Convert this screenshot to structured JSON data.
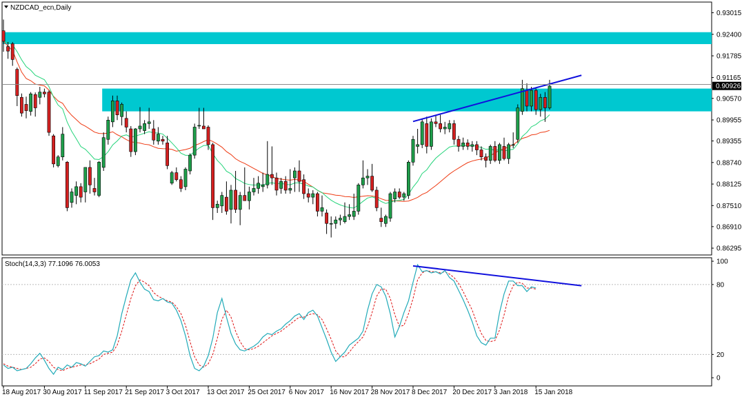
{
  "header": {
    "symbol_title": "NZDCAD_ecn,Daily",
    "indicator_title": "Stoch(14,3,3) 77.1096 76.0053"
  },
  "colors": {
    "bull": "#1e9e4a",
    "bear": "#d42020",
    "zone": "#00c8d0",
    "ma_fast": "#24d47a",
    "ma_slow": "#ee3a12",
    "trendline": "#1010dd",
    "stoch_main": "#20aab8",
    "stoch_signal": "#dd1111",
    "current_price_bg": "#000000"
  },
  "chart_data": {
    "type": "candlestick",
    "y_axis": {
      "range": [
        0.861,
        0.9332
      ],
      "ticks": [
        "0.93015",
        "0.92400",
        "0.91785",
        "0.91165",
        "0.90570",
        "0.89955",
        "0.89355",
        "0.88740",
        "0.88125",
        "0.87510",
        "0.86910",
        "0.86295"
      ],
      "current_price": "0.90926",
      "current_price_value": 0.90926
    },
    "x_axis": {
      "labels": [
        "18 Aug 2017",
        "30 Aug 2017",
        "11 Sep 2017",
        "21 Sep 2017",
        "3 Oct 2017",
        "13 Oct 2017",
        "25 Oct 2017",
        "6 Nov 2017",
        "16 Nov 2017",
        "28 Nov 2017",
        "8 Dec 2017",
        "20 Dec 2017",
        "3 Jan 2018",
        "15 Jan 2018"
      ],
      "label_bar_index": [
        0,
        9,
        18,
        27,
        36,
        45,
        54,
        63,
        72,
        81,
        90,
        99,
        108,
        117
      ]
    },
    "resistance_zones": [
      {
        "low": 0.9212,
        "high": 0.9246,
        "from_bar": 0,
        "to_bar": "right_edge"
      },
      {
        "low": 0.902,
        "high": 0.9085,
        "from_bar": 22,
        "to_bar": "right_edge"
      }
    ],
    "horizontal_line": 0.9097,
    "price_trendline": [
      {
        "bar": 90,
        "price": 0.8991
      },
      {
        "bar": 127,
        "price": 0.9123
      }
    ],
    "candles": [
      {
        "o": 0.925,
        "h": 0.9282,
        "l": 0.919,
        "c": 0.922
      },
      {
        "o": 0.9205,
        "h": 0.9218,
        "l": 0.917,
        "c": 0.9192
      },
      {
        "o": 0.9213,
        "h": 0.9218,
        "l": 0.915,
        "c": 0.9168
      },
      {
        "o": 0.914,
        "h": 0.9145,
        "l": 0.9035,
        "c": 0.9065
      },
      {
        "o": 0.906,
        "h": 0.9071,
        "l": 0.9005,
        "c": 0.9015
      },
      {
        "o": 0.904,
        "h": 0.9062,
        "l": 0.9,
        "c": 0.9022
      },
      {
        "o": 0.902,
        "h": 0.9075,
        "l": 0.9008,
        "c": 0.907
      },
      {
        "o": 0.9068,
        "h": 0.9074,
        "l": 0.9005,
        "c": 0.903
      },
      {
        "o": 0.906,
        "h": 0.909,
        "l": 0.904,
        "c": 0.9075
      },
      {
        "o": 0.9075,
        "h": 0.9085,
        "l": 0.906,
        "c": 0.907
      },
      {
        "o": 0.9075,
        "h": 0.908,
        "l": 0.895,
        "c": 0.896
      },
      {
        "o": 0.895,
        "h": 0.8955,
        "l": 0.886,
        "c": 0.887
      },
      {
        "o": 0.8865,
        "h": 0.8895,
        "l": 0.886,
        "c": 0.889
      },
      {
        "o": 0.889,
        "h": 0.8975,
        "l": 0.888,
        "c": 0.8955
      },
      {
        "o": 0.8875,
        "h": 0.8878,
        "l": 0.8735,
        "c": 0.8745
      },
      {
        "o": 0.876,
        "h": 0.88,
        "l": 0.8745,
        "c": 0.879
      },
      {
        "o": 0.878,
        "h": 0.882,
        "l": 0.8755,
        "c": 0.8805
      },
      {
        "o": 0.8805,
        "h": 0.8815,
        "l": 0.876,
        "c": 0.8775
      },
      {
        "o": 0.879,
        "h": 0.886,
        "l": 0.876,
        "c": 0.886
      },
      {
        "o": 0.886,
        "h": 0.888,
        "l": 0.8785,
        "c": 0.881
      },
      {
        "o": 0.88,
        "h": 0.883,
        "l": 0.878,
        "c": 0.879
      },
      {
        "o": 0.878,
        "h": 0.8878,
        "l": 0.8775,
        "c": 0.8875
      },
      {
        "o": 0.886,
        "h": 0.896,
        "l": 0.885,
        "c": 0.8945
      },
      {
        "o": 0.894,
        "h": 0.9005,
        "l": 0.8925,
        "c": 0.8995
      },
      {
        "o": 0.899,
        "h": 0.9065,
        "l": 0.8975,
        "c": 0.905
      },
      {
        "o": 0.905,
        "h": 0.9065,
        "l": 0.8995,
        "c": 0.901
      },
      {
        "o": 0.9005,
        "h": 0.9045,
        "l": 0.898,
        "c": 0.904
      },
      {
        "o": 0.9,
        "h": 0.902,
        "l": 0.896,
        "c": 0.8975
      },
      {
        "o": 0.897,
        "h": 0.8978,
        "l": 0.889,
        "c": 0.8905
      },
      {
        "o": 0.8905,
        "h": 0.8972,
        "l": 0.8895,
        "c": 0.897
      },
      {
        "o": 0.897,
        "h": 0.9032,
        "l": 0.896,
        "c": 0.8978
      },
      {
        "o": 0.8965,
        "h": 0.8995,
        "l": 0.8955,
        "c": 0.8985
      },
      {
        "o": 0.8985,
        "h": 0.903,
        "l": 0.897,
        "c": 0.899
      },
      {
        "o": 0.897,
        "h": 0.8995,
        "l": 0.8925,
        "c": 0.8938
      },
      {
        "o": 0.8935,
        "h": 0.8975,
        "l": 0.8925,
        "c": 0.8955
      },
      {
        "o": 0.894,
        "h": 0.895,
        "l": 0.8925,
        "c": 0.8935
      },
      {
        "o": 0.893,
        "h": 0.895,
        "l": 0.8855,
        "c": 0.8865
      },
      {
        "o": 0.8815,
        "h": 0.885,
        "l": 0.881,
        "c": 0.8845
      },
      {
        "o": 0.8845,
        "h": 0.886,
        "l": 0.882,
        "c": 0.8825
      },
      {
        "o": 0.8825,
        "h": 0.8835,
        "l": 0.879,
        "c": 0.88
      },
      {
        "o": 0.8805,
        "h": 0.886,
        "l": 0.8795,
        "c": 0.8855
      },
      {
        "o": 0.885,
        "h": 0.89,
        "l": 0.884,
        "c": 0.8895
      },
      {
        "o": 0.8895,
        "h": 0.8985,
        "l": 0.8885,
        "c": 0.8975
      },
      {
        "o": 0.8978,
        "h": 0.903,
        "l": 0.897,
        "c": 0.898
      },
      {
        "o": 0.8978,
        "h": 0.903,
        "l": 0.897,
        "c": 0.897
      },
      {
        "o": 0.8975,
        "h": 0.898,
        "l": 0.891,
        "c": 0.8925
      },
      {
        "o": 0.8925,
        "h": 0.893,
        "l": 0.871,
        "c": 0.8745
      },
      {
        "o": 0.8745,
        "h": 0.8765,
        "l": 0.873,
        "c": 0.8755
      },
      {
        "o": 0.875,
        "h": 0.879,
        "l": 0.873,
        "c": 0.878
      },
      {
        "o": 0.8775,
        "h": 0.882,
        "l": 0.8725,
        "c": 0.8735
      },
      {
        "o": 0.874,
        "h": 0.881,
        "l": 0.87,
        "c": 0.8795
      },
      {
        "o": 0.8795,
        "h": 0.885,
        "l": 0.873,
        "c": 0.874
      },
      {
        "o": 0.874,
        "h": 0.879,
        "l": 0.8695,
        "c": 0.878
      },
      {
        "o": 0.878,
        "h": 0.886,
        "l": 0.877,
        "c": 0.8765
      },
      {
        "o": 0.8765,
        "h": 0.8805,
        "l": 0.874,
        "c": 0.879
      },
      {
        "o": 0.879,
        "h": 0.883,
        "l": 0.878,
        "c": 0.88
      },
      {
        "o": 0.88,
        "h": 0.8835,
        "l": 0.8785,
        "c": 0.8815
      },
      {
        "o": 0.8805,
        "h": 0.8845,
        "l": 0.879,
        "c": 0.881
      },
      {
        "o": 0.881,
        "h": 0.8935,
        "l": 0.88,
        "c": 0.884
      },
      {
        "o": 0.884,
        "h": 0.892,
        "l": 0.881,
        "c": 0.883
      },
      {
        "o": 0.883,
        "h": 0.8845,
        "l": 0.878,
        "c": 0.8795
      },
      {
        "o": 0.88,
        "h": 0.883,
        "l": 0.8785,
        "c": 0.882
      },
      {
        "o": 0.882,
        "h": 0.8835,
        "l": 0.8785,
        "c": 0.8795
      },
      {
        "o": 0.8795,
        "h": 0.8855,
        "l": 0.8785,
        "c": 0.88
      },
      {
        "o": 0.883,
        "h": 0.886,
        "l": 0.879,
        "c": 0.885
      },
      {
        "o": 0.885,
        "h": 0.888,
        "l": 0.879,
        "c": 0.882
      },
      {
        "o": 0.8825,
        "h": 0.884,
        "l": 0.877,
        "c": 0.8785
      },
      {
        "o": 0.8785,
        "h": 0.88,
        "l": 0.876,
        "c": 0.8775
      },
      {
        "o": 0.8775,
        "h": 0.8795,
        "l": 0.8755,
        "c": 0.8785
      },
      {
        "o": 0.8785,
        "h": 0.879,
        "l": 0.872,
        "c": 0.8735
      },
      {
        "o": 0.8735,
        "h": 0.878,
        "l": 0.872,
        "c": 0.8745
      },
      {
        "o": 0.873,
        "h": 0.874,
        "l": 0.867,
        "c": 0.87
      },
      {
        "o": 0.87,
        "h": 0.872,
        "l": 0.866,
        "c": 0.87
      },
      {
        "o": 0.87,
        "h": 0.872,
        "l": 0.8685,
        "c": 0.871
      },
      {
        "o": 0.871,
        "h": 0.8725,
        "l": 0.8695,
        "c": 0.8715
      },
      {
        "o": 0.8705,
        "h": 0.876,
        "l": 0.87,
        "c": 0.872
      },
      {
        "o": 0.872,
        "h": 0.8755,
        "l": 0.871,
        "c": 0.8725
      },
      {
        "o": 0.872,
        "h": 0.8785,
        "l": 0.871,
        "c": 0.8735
      },
      {
        "o": 0.8735,
        "h": 0.8815,
        "l": 0.8725,
        "c": 0.881
      },
      {
        "o": 0.881,
        "h": 0.888,
        "l": 0.88,
        "c": 0.883
      },
      {
        "o": 0.883,
        "h": 0.8855,
        "l": 0.881,
        "c": 0.8835
      },
      {
        "o": 0.8835,
        "h": 0.887,
        "l": 0.879,
        "c": 0.8795
      },
      {
        "o": 0.8795,
        "h": 0.8805,
        "l": 0.8735,
        "c": 0.8745
      },
      {
        "o": 0.8715,
        "h": 0.8745,
        "l": 0.869,
        "c": 0.8705
      },
      {
        "o": 0.87,
        "h": 0.8725,
        "l": 0.869,
        "c": 0.872
      },
      {
        "o": 0.8715,
        "h": 0.879,
        "l": 0.8705,
        "c": 0.8785
      },
      {
        "o": 0.877,
        "h": 0.88,
        "l": 0.876,
        "c": 0.879
      },
      {
        "o": 0.879,
        "h": 0.88,
        "l": 0.877,
        "c": 0.8775
      },
      {
        "o": 0.8775,
        "h": 0.879,
        "l": 0.8765,
        "c": 0.8785
      },
      {
        "o": 0.878,
        "h": 0.888,
        "l": 0.877,
        "c": 0.8875
      },
      {
        "o": 0.8875,
        "h": 0.895,
        "l": 0.8865,
        "c": 0.894
      },
      {
        "o": 0.892,
        "h": 0.897,
        "l": 0.89,
        "c": 0.8925
      },
      {
        "o": 0.8925,
        "h": 0.9,
        "l": 0.8915,
        "c": 0.899
      },
      {
        "o": 0.8985,
        "h": 0.9005,
        "l": 0.89,
        "c": 0.892
      },
      {
        "o": 0.892,
        "h": 0.9,
        "l": 0.891,
        "c": 0.899
      },
      {
        "o": 0.899,
        "h": 0.901,
        "l": 0.8975,
        "c": 0.8985
      },
      {
        "o": 0.8985,
        "h": 0.901,
        "l": 0.896,
        "c": 0.897
      },
      {
        "o": 0.897,
        "h": 0.899,
        "l": 0.8955,
        "c": 0.8975
      },
      {
        "o": 0.897,
        "h": 0.8995,
        "l": 0.896,
        "c": 0.8985
      },
      {
        "o": 0.8985,
        "h": 0.8995,
        "l": 0.8925,
        "c": 0.894
      },
      {
        "o": 0.894,
        "h": 0.895,
        "l": 0.8905,
        "c": 0.892
      },
      {
        "o": 0.892,
        "h": 0.8945,
        "l": 0.891,
        "c": 0.893
      },
      {
        "o": 0.893,
        "h": 0.894,
        "l": 0.891,
        "c": 0.892
      },
      {
        "o": 0.892,
        "h": 0.8935,
        "l": 0.8905,
        "c": 0.8925
      },
      {
        "o": 0.8925,
        "h": 0.8935,
        "l": 0.8895,
        "c": 0.891
      },
      {
        "o": 0.891,
        "h": 0.892,
        "l": 0.888,
        "c": 0.889
      },
      {
        "o": 0.889,
        "h": 0.89,
        "l": 0.886,
        "c": 0.888
      },
      {
        "o": 0.888,
        "h": 0.8925,
        "l": 0.887,
        "c": 0.892
      },
      {
        "o": 0.892,
        "h": 0.8935,
        "l": 0.8875,
        "c": 0.888
      },
      {
        "o": 0.888,
        "h": 0.893,
        "l": 0.887,
        "c": 0.8925
      },
      {
        "o": 0.892,
        "h": 0.8945,
        "l": 0.888,
        "c": 0.8885
      },
      {
        "o": 0.8885,
        "h": 0.893,
        "l": 0.887,
        "c": 0.8925
      },
      {
        "o": 0.8925,
        "h": 0.896,
        "l": 0.8915,
        "c": 0.8925
      },
      {
        "o": 0.894,
        "h": 0.904,
        "l": 0.893,
        "c": 0.903
      },
      {
        "o": 0.902,
        "h": 0.911,
        "l": 0.901,
        "c": 0.9085
      },
      {
        "o": 0.908,
        "h": 0.91,
        "l": 0.902,
        "c": 0.9035
      },
      {
        "o": 0.9035,
        "h": 0.909,
        "l": 0.902,
        "c": 0.908
      },
      {
        "o": 0.908,
        "h": 0.9085,
        "l": 0.901,
        "c": 0.9025
      },
      {
        "o": 0.9025,
        "h": 0.907,
        "l": 0.9005,
        "c": 0.906
      },
      {
        "o": 0.906,
        "h": 0.9075,
        "l": 0.899,
        "c": 0.903
      },
      {
        "o": 0.903,
        "h": 0.911,
        "l": 0.9025,
        "c": 0.9092
      }
    ],
    "stochastic": {
      "y_range": [
        -7,
        103
      ],
      "ticks": [
        "100",
        "80",
        "20",
        "0"
      ],
      "tick_values": [
        100,
        80,
        20,
        0
      ],
      "levels": [
        80,
        20
      ],
      "trendline": [
        {
          "bar": 90,
          "value": 96
        },
        {
          "bar": 127,
          "value": 79
        }
      ],
      "main": [
        11,
        8,
        9,
        6,
        7,
        8,
        12,
        17,
        21,
        15,
        8,
        3,
        9,
        7,
        11,
        9,
        13,
        12,
        10,
        14,
        18,
        19,
        23,
        22,
        24,
        36,
        55,
        70,
        84,
        90,
        82,
        76,
        74,
        67,
        66,
        68,
        65,
        64,
        58,
        49,
        36,
        19,
        8,
        6,
        10,
        19,
        34,
        56,
        68,
        52,
        38,
        29,
        24,
        23,
        25,
        27,
        30,
        35,
        38,
        37,
        40,
        42,
        46,
        49,
        53,
        55,
        50,
        56,
        58,
        53,
        43,
        33,
        22,
        14,
        18,
        22,
        28,
        31,
        34,
        40,
        58,
        72,
        80,
        78,
        70,
        55,
        35,
        44,
        56,
        66,
        82,
        97,
        91,
        92,
        90,
        91,
        89,
        92,
        86,
        83,
        75,
        67,
        58,
        48,
        36,
        30,
        28,
        34,
        34,
        56,
        72,
        83,
        83,
        79,
        79,
        74,
        78,
        77
      ],
      "signal": [
        12,
        10,
        9,
        8,
        7,
        8,
        9,
        12,
        16,
        17,
        14,
        9,
        7,
        6,
        8,
        9,
        10,
        11,
        11,
        12,
        14,
        16,
        20,
        21,
        22,
        28,
        40,
        54,
        68,
        79,
        84,
        82,
        79,
        73,
        70,
        68,
        66,
        65,
        61,
        55,
        45,
        31,
        18,
        11,
        9,
        12,
        20,
        34,
        50,
        58,
        52,
        40,
        31,
        25,
        24,
        25,
        27,
        30,
        33,
        36,
        38,
        40,
        43,
        46,
        49,
        52,
        52,
        54,
        55,
        54,
        50,
        42,
        33,
        23,
        18,
        18,
        22,
        27,
        31,
        35,
        44,
        56,
        70,
        76,
        76,
        68,
        54,
        44,
        45,
        55,
        68,
        84,
        90,
        92,
        91,
        91,
        90,
        91,
        89,
        86,
        81,
        74,
        66,
        58,
        47,
        38,
        32,
        31,
        32,
        41,
        54,
        70,
        79,
        82,
        81,
        77,
        77,
        76
      ]
    }
  }
}
